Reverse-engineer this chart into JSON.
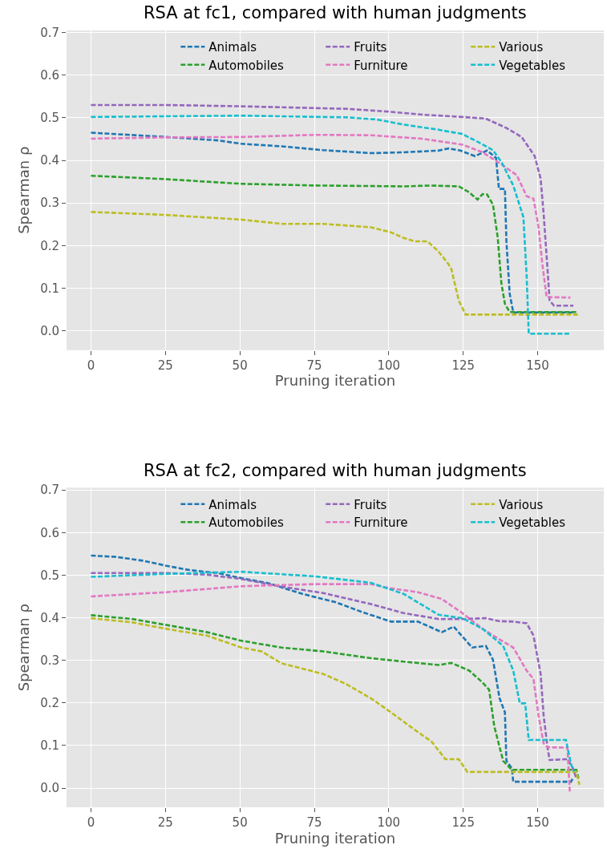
{
  "chart_data": [
    {
      "type": "line",
      "title": "RSA at fc1, compared with human judgments",
      "xlabel": "Pruning iteration",
      "ylabel": "Spearman ρ",
      "xlim": [
        -8.2,
        172.2
      ],
      "ylim": [
        -0.045,
        0.705
      ],
      "xticks": [
        0,
        25,
        50,
        75,
        100,
        125,
        150
      ],
      "yticks": [
        {
          "value": 0,
          "label": "0.0"
        },
        0.1,
        0.2,
        0.3,
        0.4,
        0.5,
        0.6,
        0.7
      ],
      "grid": true,
      "legend": "top right",
      "line_style": "dashed",
      "marker": "none",
      "series": [
        {
          "name": "Animals",
          "color": "#1f77b4",
          "x": [
            0,
            25.3,
            42.5,
            50.5,
            64,
            78,
            94,
            105,
            116.7,
            120,
            124,
            129,
            133,
            136,
            137,
            139,
            139.5,
            140.6,
            141.8,
            162
          ],
          "values": [
            0.465,
            0.455,
            0.447,
            0.439,
            0.433,
            0.424,
            0.417,
            0.419,
            0.423,
            0.428,
            0.423,
            0.41,
            0.423,
            0.406,
            0.333,
            0.333,
            0.21,
            0.087,
            0.043,
            0.043
          ]
        },
        {
          "name": "Automobiles",
          "color": "#2ca02c",
          "x": [
            0,
            25,
            50.5,
            75.6,
            105,
            114,
            123.5,
            127,
            129.8,
            131.5,
            133,
            135,
            136.6,
            137.8,
            139,
            140.6,
            163
          ],
          "values": [
            0.364,
            0.356,
            0.345,
            0.341,
            0.339,
            0.341,
            0.339,
            0.325,
            0.308,
            0.321,
            0.32,
            0.296,
            0.218,
            0.112,
            0.063,
            0.044,
            0.044
          ]
        },
        {
          "name": "Fruits",
          "color": "#9467bd",
          "x": [
            0,
            25,
            50.5,
            86,
            100.7,
            112,
            124.7,
            132.6,
            139.5,
            144.6,
            149,
            151,
            152,
            153.3,
            154,
            155.5,
            162
          ],
          "values": [
            0.53,
            0.53,
            0.527,
            0.521,
            0.514,
            0.507,
            0.502,
            0.498,
            0.476,
            0.455,
            0.41,
            0.357,
            0.275,
            0.145,
            0.071,
            0.059,
            0.059
          ]
        },
        {
          "name": "Furniture",
          "color": "#e377c2",
          "x": [
            0,
            25,
            50.5,
            75.6,
            94,
            111,
            124.7,
            131.5,
            138,
            143,
            146.3,
            148.6,
            150.3,
            151.5,
            153,
            161
          ],
          "values": [
            0.451,
            0.454,
            0.455,
            0.46,
            0.459,
            0.451,
            0.437,
            0.419,
            0.39,
            0.365,
            0.316,
            0.31,
            0.243,
            0.161,
            0.079,
            0.078
          ]
        },
        {
          "name": "Various",
          "color": "#bcbd22",
          "x": [
            0,
            25,
            50.5,
            64,
            78,
            94,
            100.7,
            105,
            108.7,
            113,
            116.7,
            120,
            121,
            123.5,
            125.8,
            164
          ],
          "values": [
            0.279,
            0.272,
            0.261,
            0.251,
            0.251,
            0.243,
            0.231,
            0.218,
            0.21,
            0.21,
            0.186,
            0.157,
            0.145,
            0.071,
            0.038,
            0.038
          ]
        },
        {
          "name": "Vegetables",
          "color": "#17becf",
          "x": [
            0,
            50.5,
            86,
            96,
            105,
            116.7,
            124.7,
            130,
            135,
            138,
            141.8,
            145.2,
            146.3,
            147,
            161
          ],
          "values": [
            0.502,
            0.505,
            0.501,
            0.496,
            0.484,
            0.472,
            0.462,
            0.443,
            0.424,
            0.394,
            0.341,
            0.267,
            0.128,
            -0.007,
            -0.007
          ]
        }
      ]
    },
    {
      "type": "line",
      "title": "RSA at fc2, compared with human judgments",
      "xlabel": "Pruning iteration",
      "ylabel": "Spearman ρ",
      "xlim": [
        -8.2,
        172.2
      ],
      "ylim": [
        -0.045,
        0.705
      ],
      "xticks": [
        0,
        25,
        50,
        75,
        100,
        125,
        150
      ],
      "yticks": [
        {
          "value": 0,
          "label": "0.0"
        },
        0.1,
        0.2,
        0.3,
        0.4,
        0.5,
        0.6,
        0.7
      ],
      "grid": true,
      "legend": "top right",
      "line_style": "dashed",
      "marker": "none",
      "series": [
        {
          "name": "Animals",
          "color": "#1f77b4",
          "x": [
            0,
            8.2,
            17.4,
            25.3,
            33,
            42.5,
            50.5,
            59.6,
            71,
            82.4,
            90.4,
            100.7,
            109.8,
            117.8,
            121.8,
            128,
            132.6,
            135,
            137.2,
            139,
            139.5,
            141.3,
            141.8,
            161.2,
            161.8
          ],
          "values": [
            0.546,
            0.543,
            0.534,
            0.522,
            0.512,
            0.505,
            0.493,
            0.481,
            0.456,
            0.436,
            0.415,
            0.391,
            0.391,
            0.366,
            0.379,
            0.33,
            0.334,
            0.301,
            0.211,
            0.178,
            0.064,
            0.047,
            0.015,
            0.015,
            0.023
          ]
        },
        {
          "name": "Automobiles",
          "color": "#2ca02c",
          "x": [
            0,
            14,
            25.3,
            39,
            50.5,
            64,
            78,
            94,
            105,
            116.7,
            121,
            127,
            131.5,
            133.7,
            135.4,
            136.6,
            138.4,
            141.3,
            163,
            163.7
          ],
          "values": [
            0.406,
            0.397,
            0.383,
            0.366,
            0.346,
            0.33,
            0.321,
            0.305,
            0.297,
            0.289,
            0.294,
            0.276,
            0.248,
            0.231,
            0.146,
            0.113,
            0.064,
            0.043,
            0.043,
            0.023
          ]
        },
        {
          "name": "Fruits",
          "color": "#9467bd",
          "x": [
            0,
            25.3,
            39,
            50.5,
            64,
            78,
            94,
            105,
            116.7,
            124.7,
            132.6,
            137,
            141.8,
            146.3,
            148.6,
            151,
            152,
            153.3,
            154,
            160,
            161.8,
            163
          ],
          "values": [
            0.505,
            0.505,
            0.501,
            0.491,
            0.473,
            0.458,
            0.432,
            0.411,
            0.397,
            0.397,
            0.399,
            0.392,
            0.391,
            0.387,
            0.358,
            0.268,
            0.17,
            0.096,
            0.066,
            0.068,
            0.047,
            0.023
          ]
        },
        {
          "name": "Furniture",
          "color": "#e377c2",
          "x": [
            0,
            25.3,
            50.5,
            75.6,
            94,
            100.7,
            109.8,
            117.8,
            124.7,
            131.5,
            137,
            141.8,
            146.3,
            148.6,
            150.3,
            152,
            153.3,
            160,
            160.8
          ],
          "values": [
            0.45,
            0.46,
            0.474,
            0.479,
            0.479,
            0.469,
            0.46,
            0.444,
            0.411,
            0.374,
            0.35,
            0.33,
            0.276,
            0.256,
            0.17,
            0.105,
            0.096,
            0.095,
            -0.01
          ]
        },
        {
          "name": "Various",
          "color": "#bcbd22",
          "x": [
            0,
            14,
            25.3,
            39,
            50.5,
            57.3,
            64,
            78,
            85.8,
            94,
            100.7,
            108.7,
            114.4,
            119,
            123.5,
            126.4,
            163,
            164
          ],
          "values": [
            0.399,
            0.389,
            0.374,
            0.358,
            0.33,
            0.321,
            0.293,
            0.268,
            0.244,
            0.211,
            0.178,
            0.137,
            0.109,
            0.068,
            0.068,
            0.038,
            0.038,
            0.008
          ]
        },
        {
          "name": "Vegetables",
          "color": "#17becf",
          "x": [
            0,
            25.3,
            50.5,
            75.6,
            94,
            105,
            116.7,
            124.7,
            131.5,
            138.4,
            141.8,
            144,
            145.8,
            147,
            159.5,
            161.2,
            162.3
          ],
          "values": [
            0.496,
            0.503,
            0.508,
            0.497,
            0.482,
            0.456,
            0.407,
            0.399,
            0.374,
            0.334,
            0.276,
            0.199,
            0.199,
            0.113,
            0.113,
            0.056,
            0.039
          ]
        }
      ]
    }
  ]
}
